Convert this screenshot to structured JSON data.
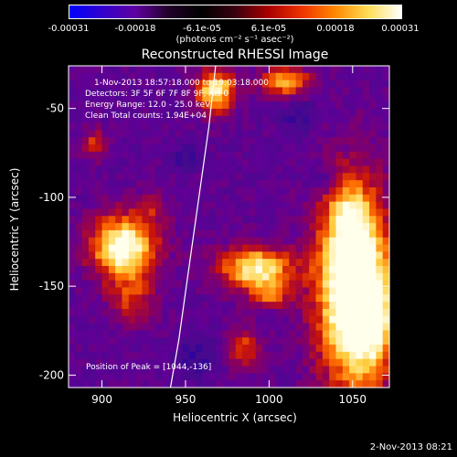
{
  "colorbar": {
    "colors": [
      "#0000ff",
      "#3300cc",
      "#6000a0",
      "#200028",
      "#000000",
      "#3a0010",
      "#aa0000",
      "#ee3300",
      "#ff8800",
      "#ffdd55",
      "#ffffff"
    ],
    "ticks": [
      "-0.00031",
      "-0.00018",
      "-6.1e-05",
      "6.1e-05",
      "0.00018",
      "0.00031"
    ],
    "unit": "(photons cm⁻² s⁻¹ asec⁻²)"
  },
  "chart_data": {
    "type": "heatmap",
    "title": "Reconstructed RHESSI Image",
    "xlabel": "Heliocentric X (arcsec)",
    "ylabel": "Heliocentric Y (arcsec)",
    "xlim": [
      880,
      1072
    ],
    "ylim": [
      -207,
      -26
    ],
    "x_ticks": [
      900,
      950,
      1000,
      1050
    ],
    "y_ticks": [
      -50,
      -100,
      -150,
      -200
    ],
    "x_tick_labels": [
      "900",
      "950",
      "1000",
      "1050"
    ],
    "y_tick_labels": [
      "-50",
      "-100",
      "-150",
      "-200"
    ],
    "colorbar_range": [
      -0.00031,
      0.00031
    ],
    "limb_curve": [
      [
        941,
        -207
      ],
      [
        946,
        -180
      ],
      [
        952,
        -140
      ],
      [
        958,
        -100
      ],
      [
        964,
        -60
      ],
      [
        968,
        -26
      ]
    ],
    "peak_position": [
      1044,
      -136
    ],
    "info_lines": [
      "1-Nov-2013 18:57:18.000 to 19:03:18.000",
      "Detectors: 3F 5F 6F 7F 8F 9F; Att 0",
      "Energy Range: 12.0 - 25.0 keV",
      "Clean    Total counts: 1.94E+04"
    ],
    "peak_label": "Position of Peak = [1044,-136]"
  },
  "footer_timestamp": "2-Nov-2013 08:21"
}
